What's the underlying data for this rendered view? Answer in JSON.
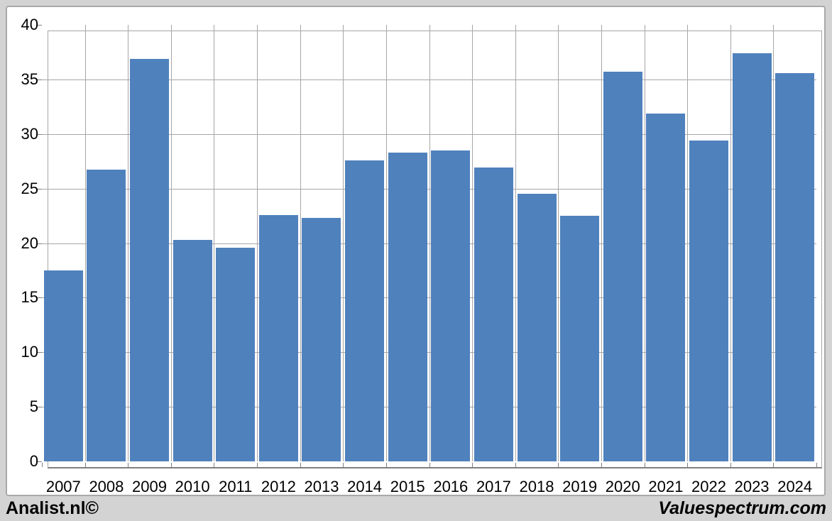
{
  "branding": {
    "left": "Analist.nl©",
    "right": "Valuespectrum.com"
  },
  "chart_data": {
    "type": "bar",
    "title": "",
    "xlabel": "",
    "ylabel": "",
    "categories": [
      "2007",
      "2008",
      "2009",
      "2010",
      "2011",
      "2012",
      "2013",
      "2014",
      "2015",
      "2016",
      "2017",
      "2018",
      "2019",
      "2020",
      "2021",
      "2022",
      "2023",
      "2024"
    ],
    "values": [
      17.5,
      26.7,
      36.9,
      20.3,
      19.6,
      22.6,
      22.3,
      27.6,
      28.3,
      28.5,
      26.9,
      24.5,
      22.5,
      35.7,
      31.9,
      29.4,
      37.4,
      35.6
    ],
    "ylim": [
      0,
      40
    ],
    "yticks": [
      0,
      5,
      10,
      15,
      20,
      25,
      30,
      35,
      40
    ],
    "grid": true,
    "legend_position": "none",
    "bar_color": "#4f81bd"
  },
  "colors": {
    "background": "#d3d3d3",
    "panel": "#ffffff",
    "panel_border": "#a9a9a9",
    "gridline": "#a6a6a6",
    "axis": "#808080",
    "text": "#000000"
  }
}
